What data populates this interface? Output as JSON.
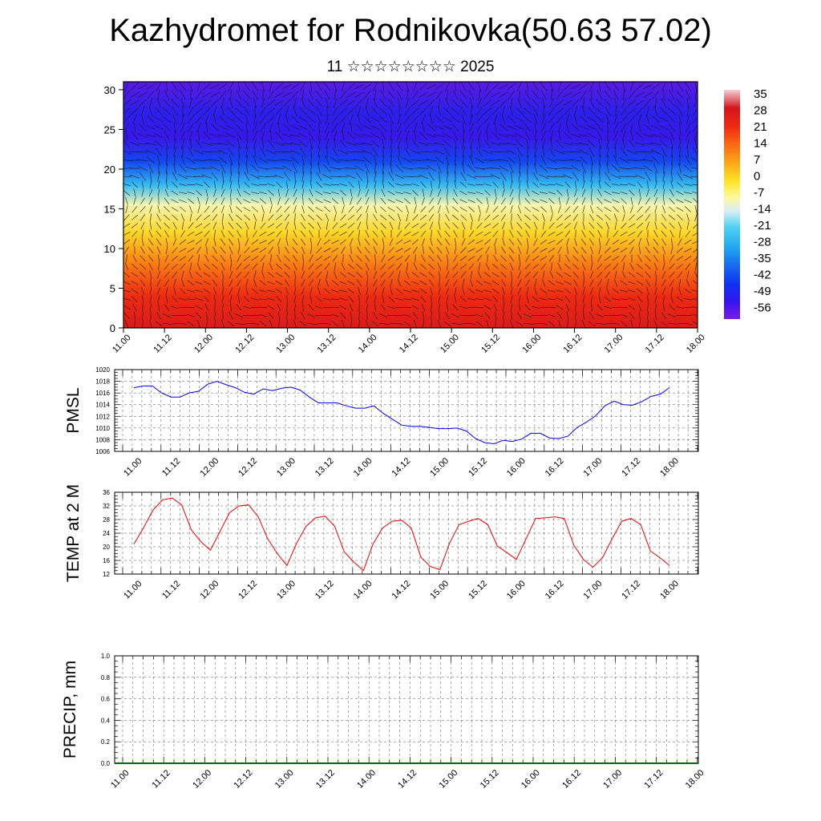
{
  "header": {
    "title": "Kazhydromet for Rodnikovka(50.63 57.02)",
    "subtitle": "11 ☆☆☆☆☆☆☆☆ 2025"
  },
  "chart_data": [
    {
      "type": "heatmap",
      "name": "cross-section",
      "x_ticks": [
        "11.00",
        "11.12",
        "12.00",
        "12.12",
        "13.00",
        "13.12",
        "14.00",
        "14.12",
        "15.00",
        "15.12",
        "16.00",
        "16.12",
        "17.00",
        "17.12",
        "18.00"
      ],
      "y_ticks": [
        "0",
        "5",
        "10",
        "15",
        "20",
        "25",
        "30"
      ],
      "ylim": [
        0,
        31
      ],
      "colorbar_labels": [
        "35",
        "28",
        "21",
        "14",
        "7",
        "0",
        "-7",
        "-14",
        "-21",
        "-28",
        "-35",
        "-42",
        "-49",
        "-56"
      ],
      "levels": [
        {
          "z": 0,
          "t": 30
        },
        {
          "z": 4,
          "t": 24
        },
        {
          "z": 8,
          "t": 14
        },
        {
          "z": 12,
          "t": 2
        },
        {
          "z": 15.5,
          "t": -8
        },
        {
          "z": 18,
          "t": -22
        },
        {
          "z": 21,
          "t": -42
        },
        {
          "z": 24,
          "t": -55
        },
        {
          "z": 27,
          "t": -52
        },
        {
          "z": 31,
          "t": -58
        }
      ],
      "overlay": "wind-barbs"
    },
    {
      "type": "line",
      "name": "pmsl",
      "ylabel": "PMSL",
      "x_ticks": [
        "11.00",
        "11.12",
        "12.00",
        "12.12",
        "13.00",
        "13.12",
        "14.00",
        "14.12",
        "15.00",
        "15.12",
        "16.00",
        "16.12",
        "17.00",
        "17.12",
        "18.00"
      ],
      "y_ticks": [
        "1006",
        "1008",
        "1010",
        "1012",
        "1014",
        "1016",
        "1018",
        "1020"
      ],
      "ylim": [
        1006,
        1020
      ],
      "color": "#0000ee",
      "values": [
        1016.9,
        1017.2,
        1017.2,
        1016.0,
        1015.3,
        1015.3,
        1016.0,
        1016.3,
        1017.5,
        1018.0,
        1017.4,
        1016.9,
        1016.1,
        1015.8,
        1016.7,
        1016.4,
        1016.8,
        1017.0,
        1016.5,
        1015.3,
        1014.3,
        1014.3,
        1014.3,
        1013.8,
        1013.4,
        1013.4,
        1013.8,
        1012.5,
        1011.5,
        1010.5,
        1010.3,
        1010.3,
        1010.1,
        1009.9,
        1009.9,
        1010.0,
        1009.5,
        1008.2,
        1007.5,
        1007.3,
        1007.9,
        1007.7,
        1008.1,
        1009.1,
        1009.1,
        1008.3,
        1008.2,
        1008.6,
        1010.1,
        1011.0,
        1012.1,
        1013.8,
        1014.6,
        1014.0,
        1013.9,
        1014.5,
        1015.4,
        1015.8,
        1016.9
      ]
    },
    {
      "type": "line",
      "name": "temp2m",
      "ylabel": "TEMP at 2 M",
      "x_ticks": [
        "11.00",
        "11.12",
        "12.00",
        "12.12",
        "13.00",
        "13.12",
        "14.00",
        "14.12",
        "15.00",
        "15.12",
        "16.00",
        "16.12",
        "17.00",
        "17.12",
        "18.00"
      ],
      "y_ticks": [
        "12",
        "16",
        "20",
        "24",
        "28",
        "32",
        "36"
      ],
      "ylim": [
        12,
        36
      ],
      "color": "#ee0000",
      "values": [
        20.8,
        25.5,
        30.8,
        33.8,
        34.3,
        32.3,
        25.0,
        21.5,
        19.0,
        24.5,
        30.0,
        32.0,
        32.3,
        28.8,
        22.3,
        18.0,
        14.5,
        21.0,
        26.0,
        28.5,
        29.0,
        26.0,
        18.5,
        15.5,
        13.0,
        20.8,
        25.5,
        27.5,
        27.8,
        25.5,
        17.0,
        14.2,
        13.3,
        21.0,
        26.5,
        27.5,
        28.3,
        26.5,
        20.2,
        18.3,
        16.3,
        22.3,
        28.3,
        28.5,
        28.8,
        28.3,
        20.5,
        16.3,
        14.0,
        16.8,
        22.3,
        27.5,
        28.3,
        26.5,
        18.8,
        16.8,
        14.5
      ]
    },
    {
      "type": "line",
      "name": "precip",
      "ylabel": "PRECIP, mm",
      "x_ticks": [
        "11.00",
        "11.12",
        "12.00",
        "12.12",
        "13.00",
        "13.12",
        "14.00",
        "14.12",
        "15.00",
        "15.12",
        "16.00",
        "16.12",
        "17.00",
        "17.12",
        "18.00"
      ],
      "y_ticks": [
        "0.0",
        "0.2",
        "0.4",
        "0.6",
        "0.8",
        "1.0"
      ],
      "ylim": [
        0,
        1
      ],
      "color": "#0a6a0a",
      "values": [
        0,
        0
      ]
    }
  ]
}
